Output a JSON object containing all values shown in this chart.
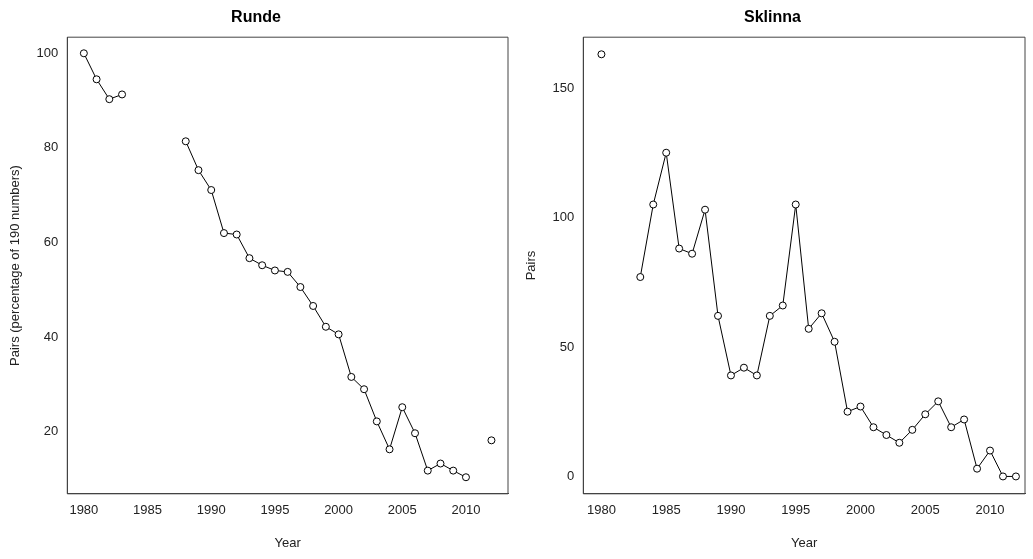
{
  "chart_data": [
    {
      "type": "line",
      "title": "Runde",
      "xlabel": "Year",
      "ylabel": "Pairs (percentage of 190 numbers)",
      "x": [
        1980,
        1981,
        1982,
        1983,
        1984,
        1985,
        1986,
        1987,
        1988,
        1989,
        1990,
        1991,
        1992,
        1993,
        1994,
        1995,
        1996,
        1997,
        1998,
        1999,
        2000,
        2001,
        2002,
        2003,
        2004,
        2005,
        2006,
        2007,
        2008,
        2009,
        2010,
        2011,
        2012
      ],
      "series": [
        {
          "color": "#000000",
          "values": [
            100,
            94.5,
            90.3,
            91.3,
            null,
            null,
            null,
            null,
            81.4,
            75.3,
            71.1,
            62,
            61.7,
            56.7,
            55.2,
            54.1,
            53.8,
            50.6,
            46.6,
            42.2,
            40.6,
            31.6,
            29,
            22.2,
            16.3,
            25.2,
            19.7,
            11.8,
            13.3,
            11.8,
            10.4,
            null,
            18.2
          ]
        }
      ],
      "xlim": [
        1978.7,
        2013.3
      ],
      "xticks": [
        1980,
        1985,
        1990,
        1995,
        2000,
        2005,
        2010
      ],
      "ylim": [
        6.9,
        103.4
      ],
      "yticks": [
        20,
        40,
        60,
        80,
        100
      ],
      "grid": false,
      "legend": false,
      "marker": "circle",
      "line_style": "solid"
    },
    {
      "type": "line",
      "title": "Sklinna",
      "xlabel": "Year",
      "ylabel": "Pairs",
      "x": [
        1980,
        1981,
        1982,
        1983,
        1984,
        1985,
        1986,
        1987,
        1988,
        1989,
        1990,
        1991,
        1992,
        1993,
        1994,
        1995,
        1996,
        1997,
        1998,
        1999,
        2000,
        2001,
        2002,
        2003,
        2004,
        2005,
        2006,
        2007,
        2008,
        2009,
        2010,
        2011,
        2012
      ],
      "series": [
        {
          "color": "#000000",
          "values": [
            163,
            null,
            null,
            77,
            105,
            125,
            88,
            86,
            103,
            62,
            39,
            42,
            39,
            62,
            66,
            105,
            57,
            63,
            52,
            25,
            27,
            19,
            16,
            13,
            18,
            24,
            29,
            19,
            22,
            3,
            10,
            0,
            0
          ]
        }
      ],
      "xlim": [
        1978.6,
        2012.7
      ],
      "xticks": [
        1980,
        1985,
        1990,
        1995,
        2000,
        2005,
        2010
      ],
      "ylim": [
        -6.7,
        169.6
      ],
      "yticks": [
        0,
        50,
        100,
        150
      ],
      "grid": false,
      "legend": false,
      "marker": "circle",
      "line_style": "solid"
    }
  ]
}
